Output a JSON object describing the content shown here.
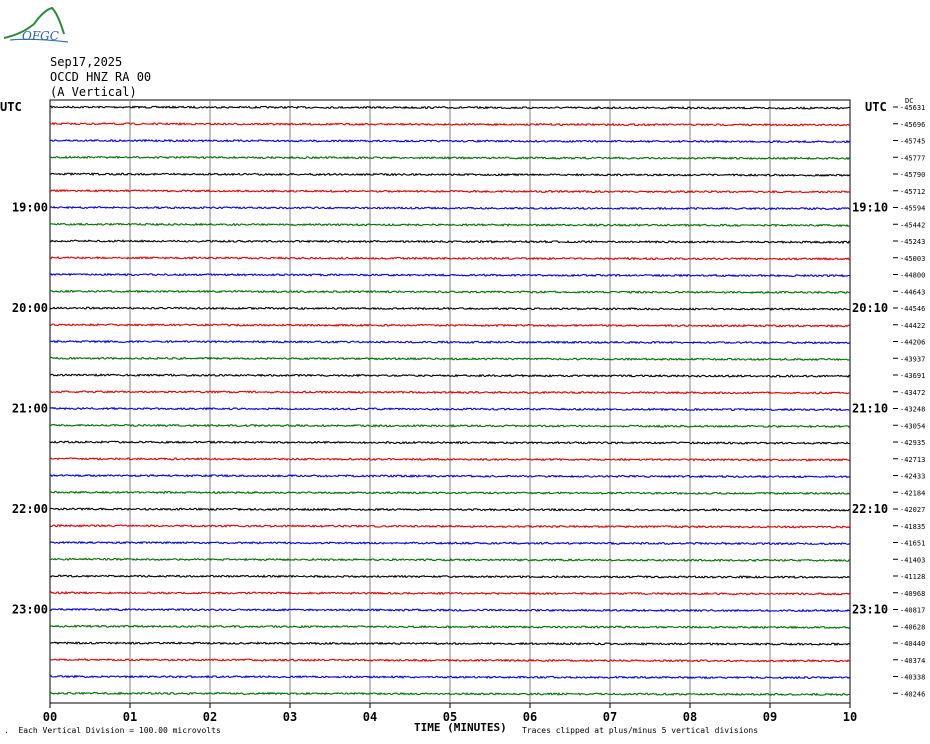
{
  "logo_text": "OFGC",
  "header": {
    "date": "Sep17,2025",
    "station": "OCCD HNZ RA 00",
    "component": "(A Vertical)"
  },
  "utc_left": "UTC",
  "utc_right": "UTC",
  "dc_label": "DC",
  "footer": {
    "scale": "Each Vertical Division =  100.00 microvolts",
    "clip_note": "Traces clipped at plus/minus 5 vertical divisions",
    "xlabel": "TIME (MINUTES)"
  },
  "colors": {
    "trace_cycle": [
      "#000000",
      "#e00000",
      "#0000e0",
      "#007000"
    ],
    "grid": "#808080"
  },
  "chart_data": {
    "type": "line",
    "title": "OCCD HNZ RA 00",
    "xlabel": "TIME (MINUTES)",
    "xlim": [
      0,
      10
    ],
    "x_ticks": [
      "00",
      "01",
      "02",
      "03",
      "04",
      "05",
      "06",
      "07",
      "08",
      "09",
      "10"
    ],
    "left_time_labels": [
      {
        "row": 6,
        "label": "19:00"
      },
      {
        "row": 12,
        "label": "20:00"
      },
      {
        "row": 18,
        "label": "21:00"
      },
      {
        "row": 24,
        "label": "22:00"
      },
      {
        "row": 30,
        "label": "23:00"
      }
    ],
    "right_time_labels": [
      {
        "row": 6,
        "label": "19:10"
      },
      {
        "row": 12,
        "label": "20:10"
      },
      {
        "row": 18,
        "label": "21:10"
      },
      {
        "row": 24,
        "label": "22:10"
      },
      {
        "row": 30,
        "label": "23:10"
      }
    ],
    "trace_count": 36,
    "dc_offsets": [
      "-45631",
      "-45696",
      "-45745",
      "-45777",
      "-45790",
      "-45712",
      "-45594",
      "-45442",
      "-45243",
      "-45003",
      "-44800",
      "-44643",
      "-44546",
      "-44422",
      "-44206",
      "-43937",
      "-43691",
      "-43472",
      "-43248",
      "-43054",
      "-42935",
      "-42713",
      "-42433",
      "-42184",
      "-42027",
      "-41835",
      "-41651",
      "-41403",
      "-41128",
      "-40968",
      "-40817",
      "-40628",
      "-40440",
      "-40374",
      "-40338",
      "-40246"
    ]
  }
}
